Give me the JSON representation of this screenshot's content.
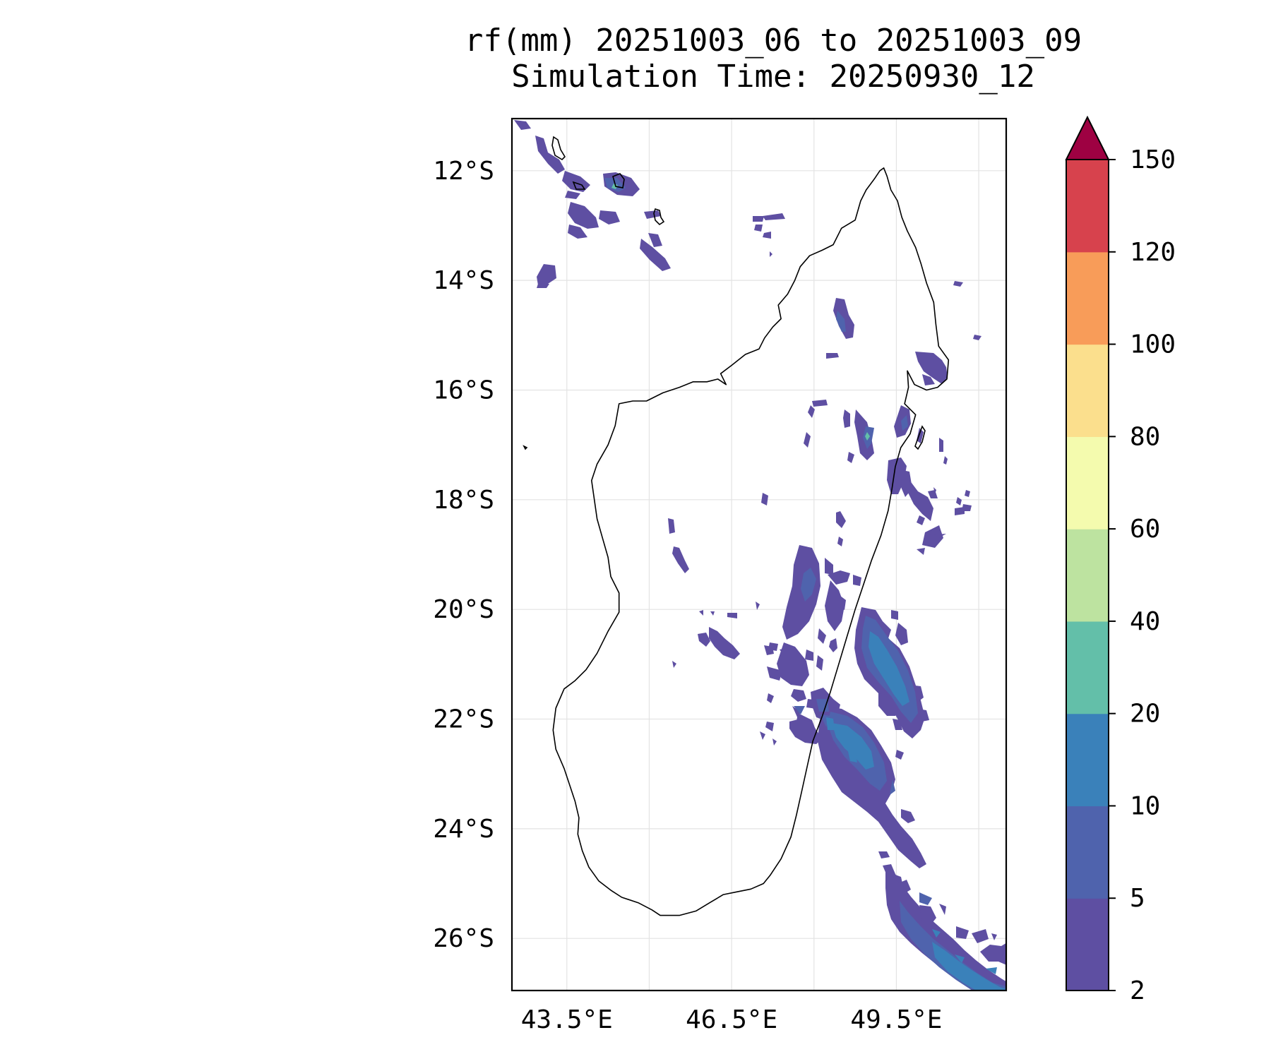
{
  "title": {
    "line1": "rf(mm) 20251003_06 to 20251003_09",
    "line2": "Simulation Time: 20250930_12"
  },
  "map": {
    "region": "Madagascar",
    "lon_range": [
      42.5,
      51.5
    ],
    "lat_range": [
      -26.95,
      -11.05
    ],
    "lat_ticks": [
      {
        "value": -12,
        "label": "12°S"
      },
      {
        "value": -14,
        "label": "14°S"
      },
      {
        "value": -16,
        "label": "16°S"
      },
      {
        "value": -18,
        "label": "18°S"
      },
      {
        "value": -20,
        "label": "20°S"
      },
      {
        "value": -22,
        "label": "22°S"
      },
      {
        "value": -24,
        "label": "24°S"
      },
      {
        "value": -26,
        "label": "26°S"
      }
    ],
    "lon_ticks": [
      {
        "value": 43.5,
        "label": "43.5°E"
      },
      {
        "value": 46.5,
        "label": "46.5°E"
      },
      {
        "value": 49.5,
        "label": "49.5°E"
      }
    ],
    "lon_gridlines": [
      43.5,
      45.0,
      46.5,
      48.0,
      49.5,
      51.0
    ],
    "coastline_color": "#000000",
    "gridline_color": "#e3e3e3"
  },
  "colorbar": {
    "levels": [
      2,
      5,
      10,
      20,
      40,
      60,
      80,
      100,
      120,
      150
    ],
    "labels": [
      "2",
      "5",
      "10",
      "20",
      "40",
      "60",
      "80",
      "100",
      "120",
      "150"
    ],
    "colors": [
      "#5e4fa2",
      "#4f63ad",
      "#3a81ba",
      "#63bfa9",
      "#bde3a0",
      "#f4fbae",
      "#fbdf8d",
      "#f89c59",
      "#d7424d"
    ],
    "extend_color": "#9e0142",
    "extend": "max"
  },
  "rainfall_colors": {
    "level_2_5": "#5e4fa2",
    "level_5_10": "#4f63ad",
    "level_10_20": "#3a81ba",
    "level_20_40": "#63bfa9"
  }
}
